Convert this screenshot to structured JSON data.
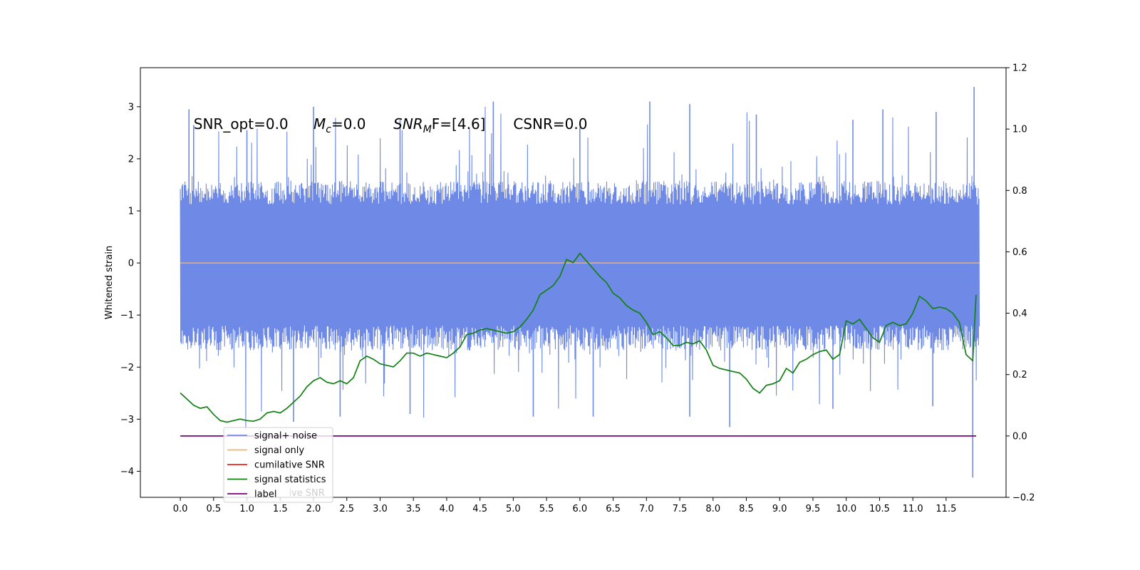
{
  "chart_data": {
    "type": "line",
    "title": "",
    "xlabel": "",
    "ylabel": "Whitened strain",
    "xlim": [
      -0.6,
      12.4
    ],
    "ylim": [
      -4.5,
      3.75
    ],
    "y2lim": [
      -0.2,
      1.2
    ],
    "x_ticks": [
      0.0,
      0.5,
      1.0,
      1.5,
      2.0,
      2.5,
      3.0,
      3.5,
      4.0,
      4.5,
      5.0,
      5.5,
      6.0,
      6.5,
      7.0,
      7.5,
      8.0,
      8.5,
      9.0,
      9.5,
      10.0,
      10.5,
      11.0,
      11.5
    ],
    "x_tick_labels": [
      "0.0",
      "0.5",
      "1.0",
      "1.5",
      "2.0",
      "2.5",
      "3.0",
      "3.5",
      "4.0",
      "4.5",
      "5.0",
      "5.5",
      "6.0",
      "6.5",
      "7.0",
      "7.5",
      "8.0",
      "8.5",
      "9.0",
      "9.5",
      "10.0",
      "10.5",
      "11.0",
      "11.5"
    ],
    "y_ticks": [
      3,
      2,
      1,
      0,
      -1,
      -2,
      -3,
      -4
    ],
    "y_tick_labels": [
      "3",
      "2",
      "1",
      "0",
      "−1",
      "−2",
      "−3",
      "−4"
    ],
    "y2_ticks": [
      1.2,
      1.0,
      0.8,
      0.6,
      0.4,
      0.2,
      0.0,
      -0.2
    ],
    "y2_tick_labels": [
      "1.2",
      "1.0",
      "0.8",
      "0.6",
      "0.4",
      "0.2",
      "0.0",
      "−0.2"
    ],
    "annotations": [
      {
        "label": "SNR_opt=0.0",
        "x": 0.2,
        "y": 2.67
      },
      {
        "label": "=0.0",
        "x": 2.0,
        "y": 2.67,
        "prefix_main": "M",
        "prefix_sub": "c"
      },
      {
        "label": "F=[4.6]",
        "x": 3.2,
        "y": 2.67,
        "prefix_main": "SNR",
        "prefix_sub": "M"
      },
      {
        "label": "CSNR=0.0",
        "x": 5.0,
        "y": 2.67
      }
    ],
    "legend": {
      "location": "lower-left",
      "entries": [
        "signal+ noise",
        "signal only",
        "cumilative SNR",
        "signal statistics",
        "label"
      ],
      "hidden_text": "cumilative SNR"
    },
    "series": [
      {
        "name": "signal+ noise",
        "axis": "left",
        "color": "#6f8ae6",
        "x_range": [
          0.0,
          12.0
        ],
        "envelope_upper_typical": 1.5,
        "envelope_lower_typical": -1.6,
        "y_max": 3.38,
        "y_min": -4.12,
        "spikes": [
          {
            "x": 0.13,
            "y": 2.95
          },
          {
            "x": 0.2,
            "y": 2.65
          },
          {
            "x": 1.0,
            "y": 2.55
          },
          {
            "x": 2.0,
            "y": 3.0
          },
          {
            "x": 3.3,
            "y": 2.75
          },
          {
            "x": 4.7,
            "y": 3.1
          },
          {
            "x": 6.0,
            "y": 2.6
          },
          {
            "x": 7.05,
            "y": 3.1
          },
          {
            "x": 7.65,
            "y": 3.05
          },
          {
            "x": 8.65,
            "y": 2.85
          },
          {
            "x": 10.1,
            "y": 2.75
          },
          {
            "x": 10.55,
            "y": 2.95
          },
          {
            "x": 11.35,
            "y": 2.9
          },
          {
            "x": 11.92,
            "y": 3.38
          },
          {
            "x": 1.7,
            "y": -3.05
          },
          {
            "x": 2.4,
            "y": -2.95
          },
          {
            "x": 3.45,
            "y": -2.9
          },
          {
            "x": 5.3,
            "y": -2.95
          },
          {
            "x": 6.2,
            "y": -2.95
          },
          {
            "x": 7.65,
            "y": -2.95
          },
          {
            "x": 8.25,
            "y": -3.15
          },
          {
            "x": 9.8,
            "y": -2.8
          },
          {
            "x": 11.3,
            "y": -2.75
          },
          {
            "x": 11.9,
            "y": -4.12
          }
        ]
      },
      {
        "name": "signal only",
        "axis": "left",
        "color": "#f5b26b",
        "x": [
          0.0,
          12.0
        ],
        "y": [
          0.0,
          0.0
        ]
      },
      {
        "name": "signal statistics",
        "axis": "right",
        "color": "#138013",
        "x": [
          0.0,
          0.1,
          0.2,
          0.3,
          0.4,
          0.5,
          0.6,
          0.7,
          0.8,
          0.9,
          1.0,
          1.1,
          1.2,
          1.3,
          1.4,
          1.5,
          1.6,
          1.7,
          1.8,
          1.9,
          2.0,
          2.1,
          2.2,
          2.3,
          2.4,
          2.5,
          2.6,
          2.7,
          2.8,
          2.9,
          3.0,
          3.1,
          3.2,
          3.3,
          3.4,
          3.5,
          3.6,
          3.7,
          3.8,
          3.9,
          4.0,
          4.1,
          4.2,
          4.3,
          4.4,
          4.5,
          4.6,
          4.7,
          4.8,
          4.9,
          5.0,
          5.1,
          5.2,
          5.3,
          5.4,
          5.5,
          5.6,
          5.7,
          5.8,
          5.9,
          6.0,
          6.1,
          6.2,
          6.3,
          6.4,
          6.5,
          6.6,
          6.7,
          6.8,
          6.9,
          7.0,
          7.1,
          7.2,
          7.3,
          7.4,
          7.5,
          7.6,
          7.7,
          7.8,
          7.9,
          8.0,
          8.1,
          8.2,
          8.3,
          8.4,
          8.5,
          8.6,
          8.7,
          8.8,
          8.9,
          9.0,
          9.1,
          9.2,
          9.3,
          9.4,
          9.5,
          9.6,
          9.7,
          9.8,
          9.9,
          10.0,
          10.1,
          10.2,
          10.3,
          10.4,
          10.5,
          10.6,
          10.7,
          10.8,
          10.9,
          11.0,
          11.1,
          11.2,
          11.3,
          11.4,
          11.5,
          11.6,
          11.7,
          11.8,
          11.9,
          11.95
        ],
        "y": [
          0.14,
          0.12,
          0.1,
          0.09,
          0.095,
          0.07,
          0.05,
          0.045,
          0.05,
          0.055,
          0.05,
          0.048,
          0.055,
          0.075,
          0.08,
          0.075,
          0.09,
          0.11,
          0.13,
          0.16,
          0.18,
          0.19,
          0.175,
          0.17,
          0.18,
          0.17,
          0.19,
          0.245,
          0.26,
          0.25,
          0.235,
          0.23,
          0.225,
          0.245,
          0.27,
          0.27,
          0.26,
          0.27,
          0.265,
          0.26,
          0.255,
          0.27,
          0.29,
          0.33,
          0.335,
          0.345,
          0.35,
          0.345,
          0.34,
          0.335,
          0.34,
          0.355,
          0.38,
          0.41,
          0.46,
          0.475,
          0.49,
          0.52,
          0.575,
          0.565,
          0.595,
          0.57,
          0.545,
          0.52,
          0.5,
          0.465,
          0.45,
          0.425,
          0.41,
          0.4,
          0.37,
          0.33,
          0.34,
          0.32,
          0.295,
          0.295,
          0.305,
          0.3,
          0.31,
          0.28,
          0.23,
          0.22,
          0.215,
          0.21,
          0.205,
          0.185,
          0.155,
          0.14,
          0.165,
          0.17,
          0.18,
          0.22,
          0.205,
          0.24,
          0.25,
          0.265,
          0.275,
          0.28,
          0.25,
          0.265,
          0.375,
          0.365,
          0.38,
          0.35,
          0.32,
          0.305,
          0.36,
          0.37,
          0.36,
          0.365,
          0.4,
          0.455,
          0.44,
          0.415,
          0.42,
          0.415,
          0.4,
          0.37,
          0.265,
          0.245,
          0.46
        ]
      },
      {
        "name": "label",
        "axis": "right",
        "color": "#800080",
        "x": [
          0.0,
          11.95
        ],
        "y": [
          0.0,
          0.0
        ]
      }
    ]
  }
}
